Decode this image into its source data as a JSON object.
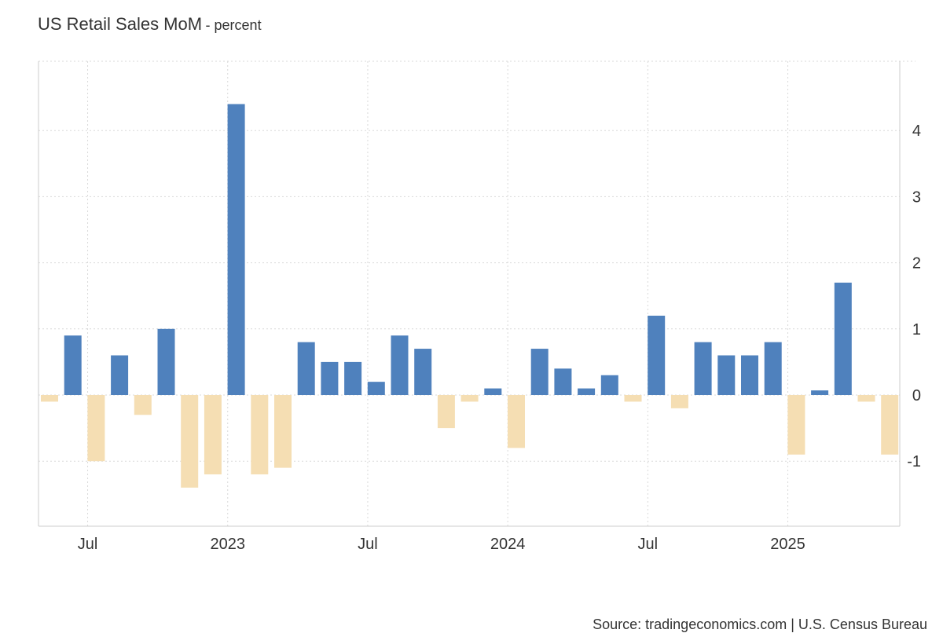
{
  "title": "US Retail Sales MoM",
  "subtitle": "- percent",
  "source": "Source: tradingeconomics.com | U.S. Census Bureau",
  "colors": {
    "positive": "#4f81bd",
    "negative": "#f5deb3",
    "grid": "#d9d9d9",
    "axis": "#cccccc",
    "text": "#333333"
  },
  "chart_data": {
    "type": "bar",
    "x": [
      "2022-05",
      "2022-06",
      "2022-07",
      "2022-08",
      "2022-09",
      "2022-10",
      "2022-11",
      "2022-12",
      "2023-01",
      "2023-02",
      "2023-03",
      "2023-04",
      "2023-05",
      "2023-06",
      "2023-07",
      "2023-08",
      "2023-09",
      "2023-10",
      "2023-11",
      "2023-12",
      "2024-01",
      "2024-02",
      "2024-03",
      "2024-04",
      "2024-05",
      "2024-06",
      "2024-07",
      "2024-08",
      "2024-09",
      "2024-10",
      "2024-11",
      "2024-12",
      "2025-01",
      "2025-02",
      "2025-03",
      "2025-04",
      "2025-05"
    ],
    "values": [
      -0.1,
      0.9,
      -1.0,
      0.6,
      -0.3,
      1.0,
      -1.4,
      -1.2,
      4.4,
      -1.2,
      -1.1,
      0.8,
      0.5,
      0.5,
      0.2,
      0.9,
      0.7,
      -0.5,
      -0.1,
      0.1,
      -0.8,
      0.7,
      0.4,
      0.1,
      0.3,
      -0.1,
      1.2,
      -0.2,
      0.8,
      0.6,
      0.6,
      0.8,
      -0.9,
      0.07,
      1.7,
      -0.1,
      -0.9
    ],
    "xtick_labels": [
      "Jul",
      "2023",
      "Jul",
      "2024",
      "Jul",
      "2025"
    ],
    "ytick_labels": [
      "-1",
      "0",
      "1",
      "2",
      "3",
      "4"
    ],
    "ylim": [
      -2,
      5
    ],
    "grid": true,
    "yaxis_side": "right"
  }
}
